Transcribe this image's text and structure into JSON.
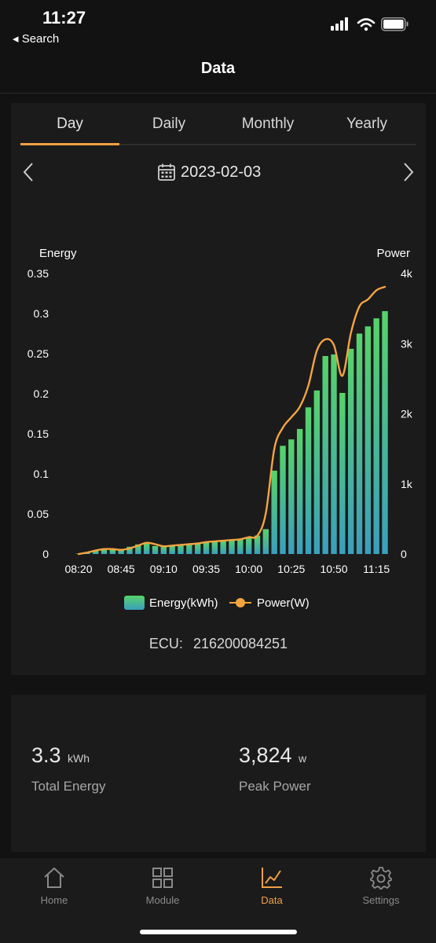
{
  "status_bar": {
    "time": "11:27",
    "back_label": "Search"
  },
  "nav": {
    "title": "Data"
  },
  "tabs": [
    {
      "label": "Day",
      "active": true
    },
    {
      "label": "Daily",
      "active": false
    },
    {
      "label": "Monthly",
      "active": false
    },
    {
      "label": "Yearly",
      "active": false
    }
  ],
  "date_picker": {
    "date": "2023-02-03"
  },
  "chart_data": {
    "type": "bar",
    "left_axis_label": "Energy",
    "right_axis_label": "Power",
    "y_left_ticks": [
      "0",
      "0.05",
      "0.1",
      "0.15",
      "0.2",
      "0.25",
      "0.3",
      "0.35"
    ],
    "y_right_ticks": [
      "0",
      "1k",
      "2k",
      "3k",
      "4k"
    ],
    "ylim_left": [
      0,
      0.35
    ],
    "ylim_right": [
      0,
      4000
    ],
    "x_tick_labels": [
      "08:20",
      "08:45",
      "09:10",
      "09:35",
      "10:00",
      "10:25",
      "10:50",
      "11:15"
    ],
    "x": [
      "08:20",
      "08:25",
      "08:30",
      "08:35",
      "08:40",
      "08:45",
      "08:50",
      "08:55",
      "09:00",
      "09:05",
      "09:10",
      "09:15",
      "09:20",
      "09:25",
      "09:30",
      "09:35",
      "09:40",
      "09:45",
      "09:50",
      "09:55",
      "10:00",
      "10:05",
      "10:10",
      "10:15",
      "10:20",
      "10:25",
      "10:30",
      "10:35",
      "10:40",
      "10:45",
      "10:50",
      "10:55",
      "11:00",
      "11:05",
      "11:10",
      "11:15",
      "11:20"
    ],
    "series": [
      {
        "name": "Energy(kWh)",
        "type": "bar",
        "axis": "left",
        "values": [
          0.0005,
          0.002,
          0.004,
          0.005,
          0.005,
          0.006,
          0.009,
          0.012,
          0.013,
          0.01,
          0.01,
          0.011,
          0.012,
          0.013,
          0.014,
          0.015,
          0.016,
          0.017,
          0.018,
          0.019,
          0.021,
          0.023,
          0.031,
          0.104,
          0.135,
          0.143,
          0.156,
          0.183,
          0.204,
          0.247,
          0.249,
          0.201,
          0.256,
          0.275,
          0.284,
          0.294,
          0.303
        ]
      },
      {
        "name": "Power(W)",
        "type": "line",
        "axis": "right",
        "values": [
          0,
          20,
          50,
          70,
          70,
          60,
          80,
          120,
          160,
          140,
          110,
          120,
          130,
          140,
          150,
          170,
          180,
          190,
          200,
          210,
          240,
          260,
          580,
          1500,
          1800,
          1950,
          2100,
          2400,
          2900,
          3060,
          2980,
          2540,
          3150,
          3530,
          3630,
          3760,
          3810
        ]
      }
    ],
    "colors": {
      "bar_top": "#57d36a",
      "bar_bottom": "#3a9fbd",
      "line": "#f5a440",
      "tick_text": "#ffffff"
    },
    "legend": {
      "position": "bottom",
      "energy_label": "Energy(kWh)",
      "power_label": "Power(W)"
    }
  },
  "ecu": {
    "label": "ECU:",
    "value": "216200084251"
  },
  "summary": {
    "total_energy": {
      "value": "3.3",
      "unit": "kWh",
      "label": "Total Energy"
    },
    "peak_power": {
      "value": "3,824",
      "unit": "w",
      "label": "Peak Power"
    }
  },
  "tabbar": [
    {
      "label": "Home",
      "icon": "home-icon",
      "active": false
    },
    {
      "label": "Module",
      "icon": "grid-icon",
      "active": false
    },
    {
      "label": "Data",
      "icon": "chart-icon",
      "active": true
    },
    {
      "label": "Settings",
      "icon": "gear-icon",
      "active": false
    }
  ],
  "accent_color": "#f0a044"
}
